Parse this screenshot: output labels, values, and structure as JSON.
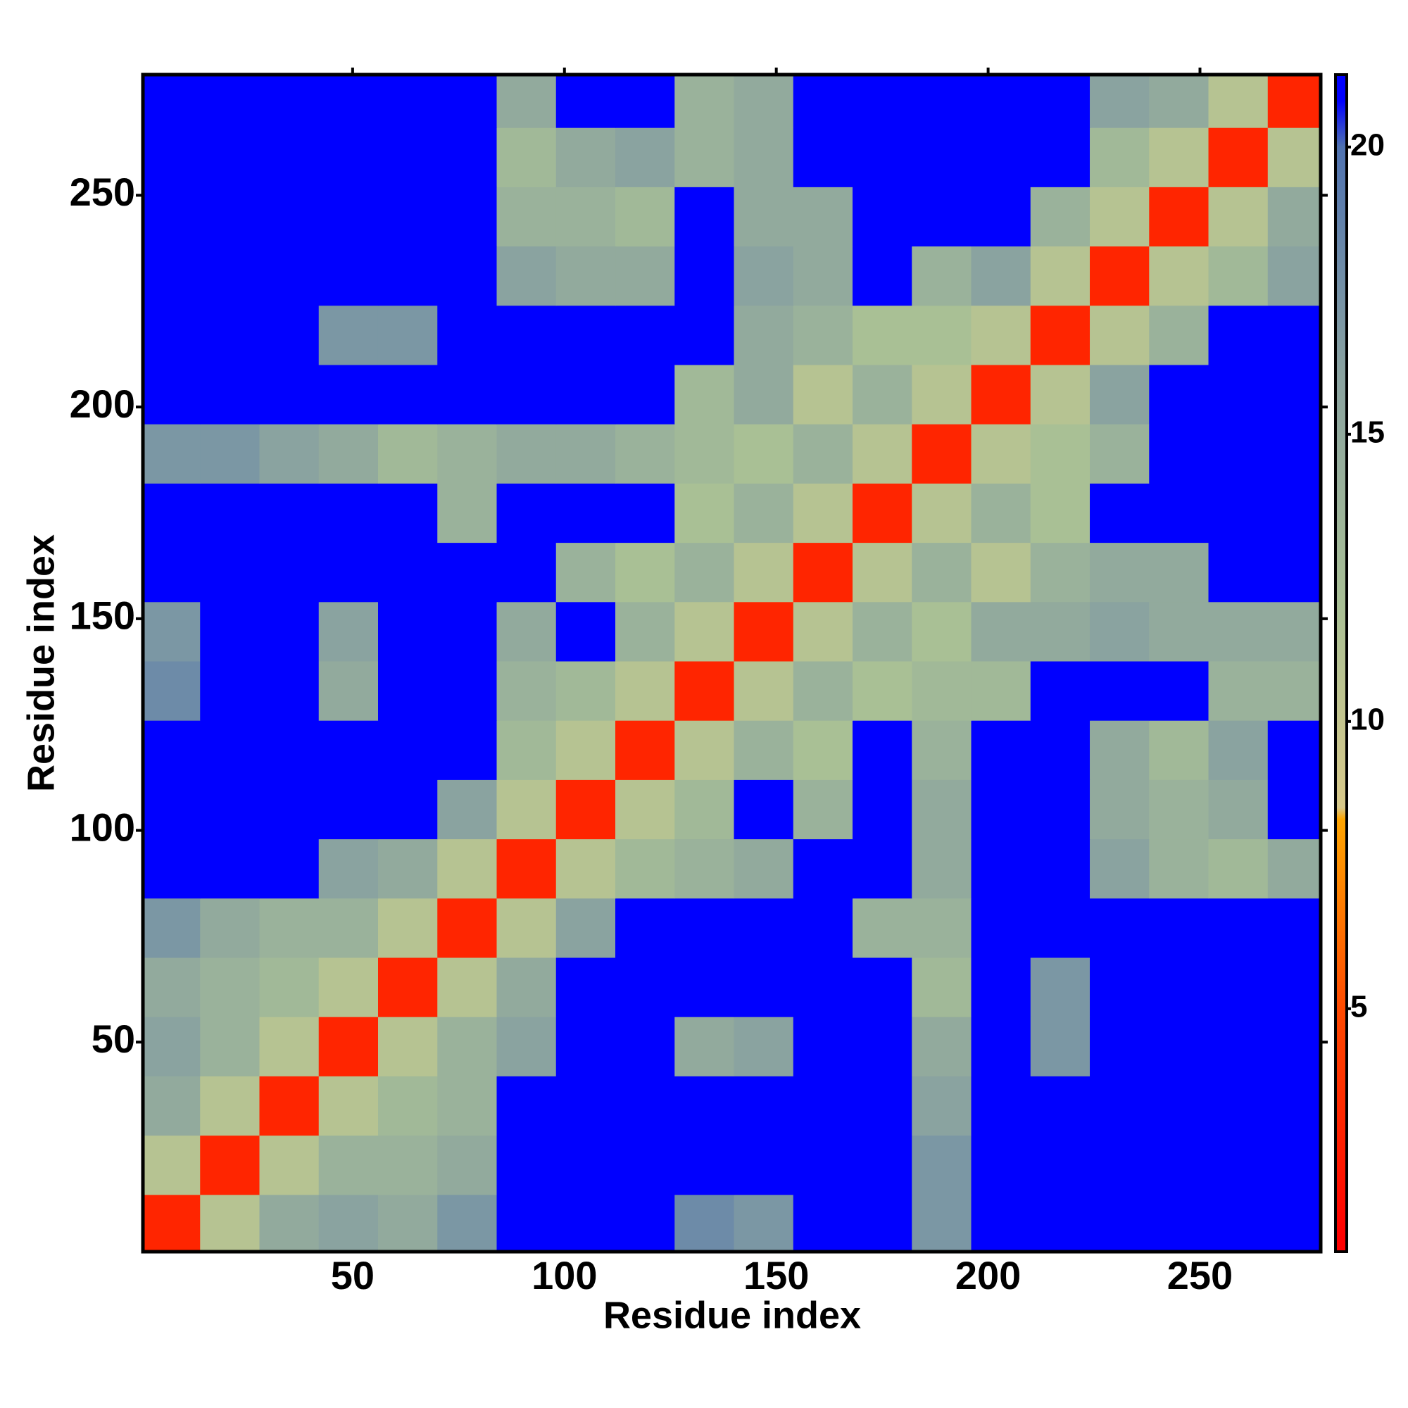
{
  "chart_data": {
    "type": "heatmap",
    "xlabel": "Residue index",
    "ylabel": "Residue index",
    "x": [
      7,
      21,
      35,
      49,
      63,
      77,
      91,
      105,
      119,
      133,
      147,
      161,
      175,
      189,
      203,
      217,
      231,
      245,
      259,
      273
    ],
    "y": [
      7,
      21,
      35,
      49,
      63,
      77,
      91,
      105,
      119,
      133,
      147,
      161,
      175,
      189,
      203,
      217,
      231,
      245,
      259,
      273
    ],
    "cell_size": 14,
    "z": [
      [
        3,
        11,
        15,
        16,
        15,
        17,
        21,
        21,
        21,
        18,
        17,
        21,
        21,
        17,
        21,
        21,
        21,
        21,
        21,
        21
      ],
      [
        11,
        3,
        11,
        14,
        14,
        15,
        21,
        21,
        21,
        21,
        21,
        21,
        21,
        17,
        21,
        21,
        21,
        21,
        21,
        21
      ],
      [
        15,
        11,
        3,
        11,
        13,
        14,
        21,
        21,
        21,
        21,
        21,
        21,
        21,
        16,
        21,
        21,
        21,
        21,
        21,
        21
      ],
      [
        16,
        14,
        11,
        3,
        11,
        14,
        16,
        21,
        21,
        15,
        16,
        21,
        21,
        15,
        21,
        17,
        21,
        21,
        21,
        21
      ],
      [
        15,
        14,
        13,
        11,
        3,
        11,
        15,
        21,
        21,
        21,
        21,
        21,
        21,
        13,
        21,
        17,
        21,
        21,
        21,
        21
      ],
      [
        17,
        15,
        14,
        14,
        11,
        3,
        11,
        16,
        21,
        21,
        21,
        21,
        14,
        14,
        21,
        21,
        21,
        21,
        21,
        21
      ],
      [
        21,
        21,
        21,
        16,
        15,
        11,
        3,
        11,
        13,
        14,
        15,
        21,
        21,
        15,
        21,
        21,
        16,
        14,
        13,
        15
      ],
      [
        21,
        21,
        21,
        21,
        21,
        16,
        11,
        3,
        11,
        13,
        21,
        14,
        21,
        15,
        21,
        21,
        15,
        14,
        15,
        21
      ],
      [
        21,
        21,
        21,
        21,
        21,
        21,
        13,
        11,
        3,
        11,
        14,
        12,
        21,
        14,
        21,
        21,
        15,
        13,
        16,
        21
      ],
      [
        18,
        21,
        21,
        15,
        21,
        21,
        14,
        13,
        11,
        3,
        11,
        14,
        12,
        13,
        13,
        21,
        21,
        21,
        14,
        14
      ],
      [
        17,
        21,
        21,
        16,
        21,
        21,
        15,
        21,
        14,
        11,
        3,
        11,
        14,
        12,
        15,
        15,
        16,
        15,
        15,
        15
      ],
      [
        21,
        21,
        21,
        21,
        21,
        21,
        21,
        14,
        12,
        14,
        11,
        3,
        11,
        14,
        11,
        14,
        15,
        15,
        21,
        21
      ],
      [
        21,
        21,
        21,
        21,
        21,
        14,
        21,
        21,
        21,
        12,
        14,
        11,
        3,
        11,
        14,
        12,
        21,
        21,
        21,
        21
      ],
      [
        17,
        17,
        16,
        15,
        13,
        14,
        15,
        15,
        14,
        13,
        12,
        14,
        11,
        3,
        11,
        12,
        14,
        21,
        21,
        21
      ],
      [
        21,
        21,
        21,
        21,
        21,
        21,
        21,
        21,
        21,
        13,
        15,
        11,
        14,
        11,
        3,
        11,
        16,
        21,
        21,
        21
      ],
      [
        21,
        21,
        21,
        17,
        17,
        21,
        21,
        21,
        21,
        21,
        15,
        14,
        12,
        12,
        11,
        3,
        11,
        14,
        21,
        21
      ],
      [
        21,
        21,
        21,
        21,
        21,
        21,
        16,
        15,
        15,
        21,
        16,
        15,
        21,
        14,
        16,
        11,
        3,
        11,
        13,
        16
      ],
      [
        21,
        21,
        21,
        21,
        21,
        21,
        14,
        14,
        13,
        21,
        15,
        15,
        21,
        21,
        21,
        14,
        11,
        3,
        11,
        15
      ],
      [
        21,
        21,
        21,
        21,
        21,
        21,
        13,
        15,
        16,
        14,
        15,
        21,
        21,
        21,
        21,
        21,
        13,
        11,
        3,
        11
      ],
      [
        21,
        21,
        21,
        21,
        21,
        21,
        15,
        21,
        21,
        14,
        15,
        21,
        21,
        21,
        21,
        21,
        16,
        15,
        11,
        3
      ]
    ],
    "xlim": [
      0.5,
      278.5
    ],
    "ylim": [
      0.5,
      278.5
    ],
    "xticks": [
      50,
      100,
      150,
      200,
      250
    ],
    "yticks": [
      50,
      100,
      150,
      200,
      250
    ],
    "clim": [
      0.77,
      21.26
    ],
    "cticks": [
      5,
      10,
      15,
      20
    ],
    "colorscale": [
      [
        1,
        "#ff0000"
      ],
      [
        5,
        "#ff4a00"
      ],
      [
        8.3,
        "#ffa500"
      ],
      [
        8.5,
        "#d8c98a"
      ],
      [
        12,
        "#a9c095"
      ],
      [
        16,
        "#8aa3a0"
      ],
      [
        20,
        "#4f72b0"
      ],
      [
        20.8,
        "#0000ff"
      ]
    ]
  }
}
